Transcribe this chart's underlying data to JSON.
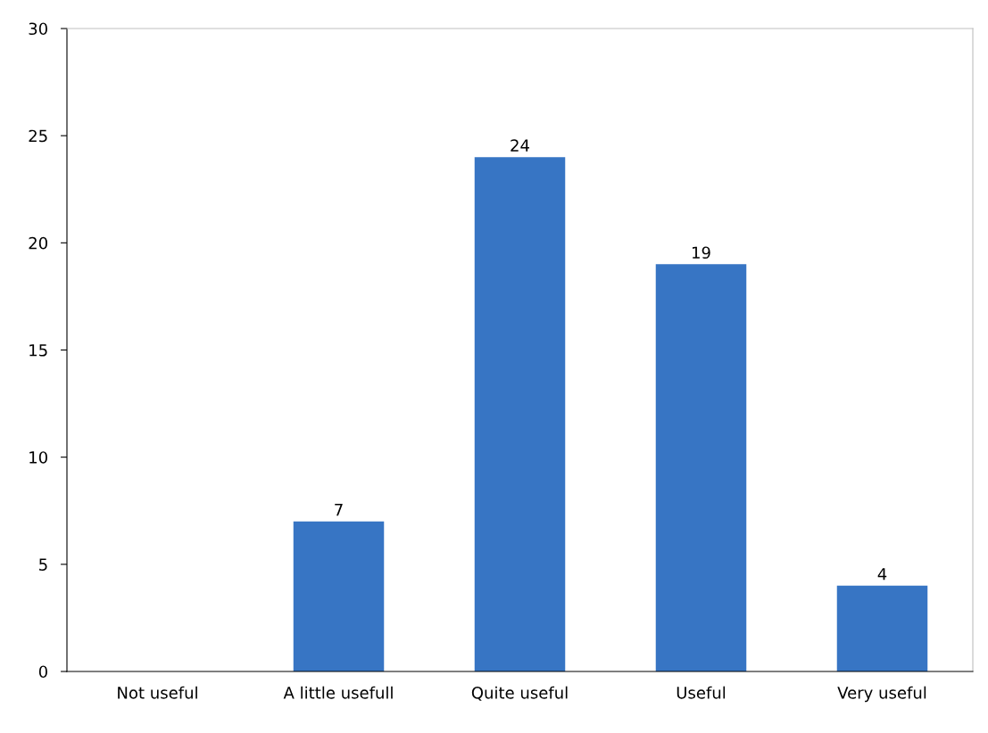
{
  "chart_data": {
    "type": "bar",
    "categories": [
      "Not useful",
      "A little usefull",
      "Quite useful",
      "Useful",
      "Very useful"
    ],
    "values": [
      0,
      7,
      24,
      19,
      4
    ],
    "value_labels": [
      null,
      "7",
      "24",
      "19",
      "4"
    ],
    "color": "#3775c4",
    "ylim": [
      0,
      30
    ],
    "yticks": [
      0,
      5,
      10,
      15,
      20,
      25,
      30
    ],
    "grid": false
  }
}
